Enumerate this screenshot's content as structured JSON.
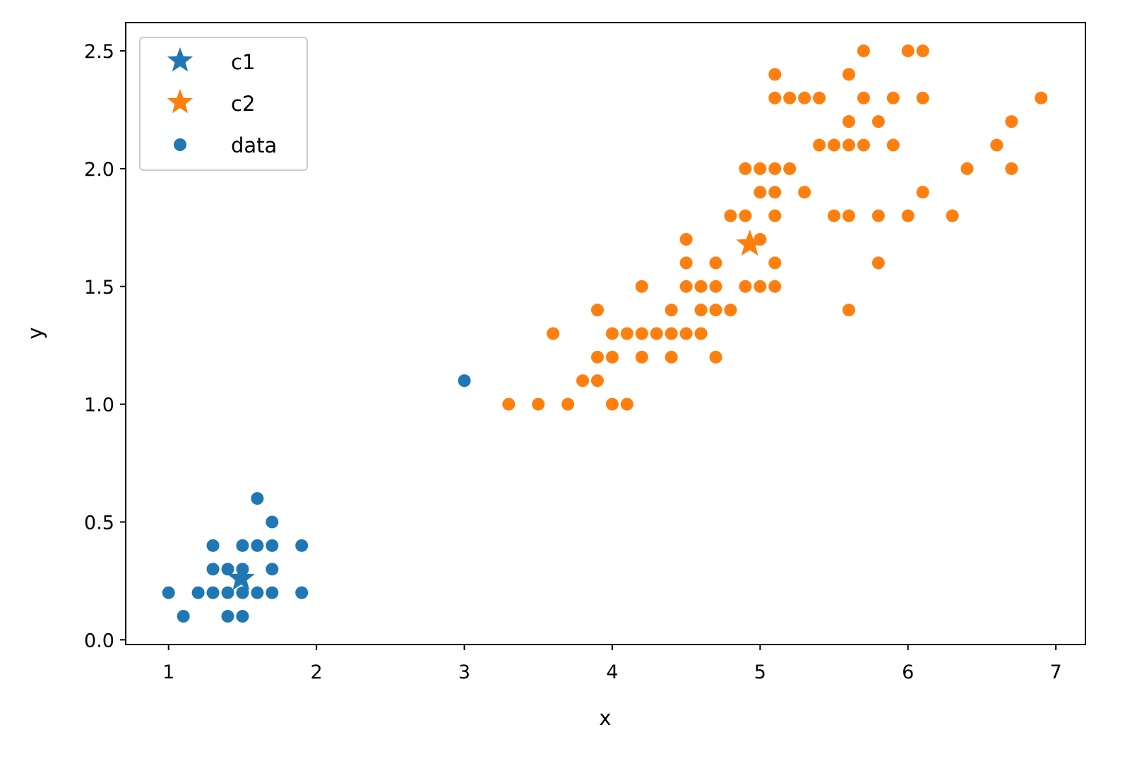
{
  "chart_data": {
    "type": "scatter",
    "xlabel": "x",
    "ylabel": "y",
    "xlim": [
      0.71,
      7.2
    ],
    "ylim": [
      -0.02,
      2.62
    ],
    "xticks": [
      "1",
      "2",
      "3",
      "4",
      "5",
      "6",
      "7"
    ],
    "yticks": [
      "0.0",
      "0.5",
      "1.0",
      "1.5",
      "2.0",
      "2.5"
    ],
    "grid": false,
    "legend_position": "top-left",
    "colors": {
      "c1": "#1f77b4",
      "c2": "#ff7f0e"
    },
    "centroids": [
      {
        "name": "c1",
        "marker": "star",
        "color": "#1f77b4",
        "x": 1.49,
        "y": 0.26
      },
      {
        "name": "c2",
        "marker": "star",
        "color": "#ff7f0e",
        "x": 4.93,
        "y": 1.68
      }
    ],
    "data_legend": {
      "name": "data",
      "color": "#1f77b4"
    },
    "clusters": [
      {
        "cluster": "c1",
        "color": "#1f77b4",
        "points": [
          [
            1.0,
            0.2
          ],
          [
            1.1,
            0.1
          ],
          [
            1.2,
            0.2
          ],
          [
            1.3,
            0.2
          ],
          [
            1.3,
            0.3
          ],
          [
            1.3,
            0.4
          ],
          [
            1.4,
            0.1
          ],
          [
            1.4,
            0.2
          ],
          [
            1.4,
            0.3
          ],
          [
            1.5,
            0.1
          ],
          [
            1.5,
            0.2
          ],
          [
            1.5,
            0.3
          ],
          [
            1.5,
            0.4
          ],
          [
            1.6,
            0.2
          ],
          [
            1.6,
            0.4
          ],
          [
            1.6,
            0.6
          ],
          [
            1.7,
            0.2
          ],
          [
            1.7,
            0.3
          ],
          [
            1.7,
            0.4
          ],
          [
            1.7,
            0.5
          ],
          [
            1.9,
            0.2
          ],
          [
            1.9,
            0.4
          ],
          [
            3.0,
            1.1
          ]
        ]
      },
      {
        "cluster": "c2",
        "color": "#ff7f0e",
        "points": [
          [
            3.3,
            1.0
          ],
          [
            3.5,
            1.0
          ],
          [
            3.7,
            1.0
          ],
          [
            4.0,
            1.0
          ],
          [
            4.1,
            1.0
          ],
          [
            3.8,
            1.1
          ],
          [
            3.9,
            1.1
          ],
          [
            3.9,
            1.2
          ],
          [
            4.0,
            1.2
          ],
          [
            4.2,
            1.2
          ],
          [
            4.4,
            1.2
          ],
          [
            4.7,
            1.2
          ],
          [
            3.6,
            1.3
          ],
          [
            4.0,
            1.3
          ],
          [
            4.1,
            1.3
          ],
          [
            4.2,
            1.3
          ],
          [
            4.3,
            1.3
          ],
          [
            4.4,
            1.3
          ],
          [
            4.5,
            1.3
          ],
          [
            4.6,
            1.3
          ],
          [
            3.9,
            1.4
          ],
          [
            4.4,
            1.4
          ],
          [
            4.6,
            1.4
          ],
          [
            4.7,
            1.4
          ],
          [
            4.8,
            1.4
          ],
          [
            5.6,
            1.4
          ],
          [
            4.2,
            1.5
          ],
          [
            4.5,
            1.5
          ],
          [
            4.6,
            1.5
          ],
          [
            4.7,
            1.5
          ],
          [
            4.9,
            1.5
          ],
          [
            5.0,
            1.5
          ],
          [
            5.1,
            1.5
          ],
          [
            4.5,
            1.6
          ],
          [
            4.7,
            1.6
          ],
          [
            5.1,
            1.6
          ],
          [
            5.8,
            1.6
          ],
          [
            4.5,
            1.7
          ],
          [
            5.0,
            1.7
          ],
          [
            4.8,
            1.8
          ],
          [
            4.9,
            1.8
          ],
          [
            5.1,
            1.8
          ],
          [
            5.5,
            1.8
          ],
          [
            5.6,
            1.8
          ],
          [
            5.8,
            1.8
          ],
          [
            6.0,
            1.8
          ],
          [
            6.3,
            1.8
          ],
          [
            5.0,
            1.9
          ],
          [
            5.1,
            1.9
          ],
          [
            5.3,
            1.9
          ],
          [
            6.1,
            1.9
          ],
          [
            4.9,
            2.0
          ],
          [
            5.0,
            2.0
          ],
          [
            5.1,
            2.0
          ],
          [
            5.2,
            2.0
          ],
          [
            6.4,
            2.0
          ],
          [
            6.7,
            2.0
          ],
          [
            5.4,
            2.1
          ],
          [
            5.5,
            2.1
          ],
          [
            5.6,
            2.1
          ],
          [
            5.7,
            2.1
          ],
          [
            5.9,
            2.1
          ],
          [
            6.6,
            2.1
          ],
          [
            5.6,
            2.2
          ],
          [
            5.8,
            2.2
          ],
          [
            6.7,
            2.2
          ],
          [
            5.1,
            2.3
          ],
          [
            5.2,
            2.3
          ],
          [
            5.3,
            2.3
          ],
          [
            5.4,
            2.3
          ],
          [
            5.7,
            2.3
          ],
          [
            5.9,
            2.3
          ],
          [
            6.1,
            2.3
          ],
          [
            6.9,
            2.3
          ],
          [
            5.1,
            2.4
          ],
          [
            5.6,
            2.4
          ],
          [
            5.7,
            2.5
          ],
          [
            6.0,
            2.5
          ],
          [
            6.1,
            2.5
          ]
        ]
      }
    ]
  }
}
